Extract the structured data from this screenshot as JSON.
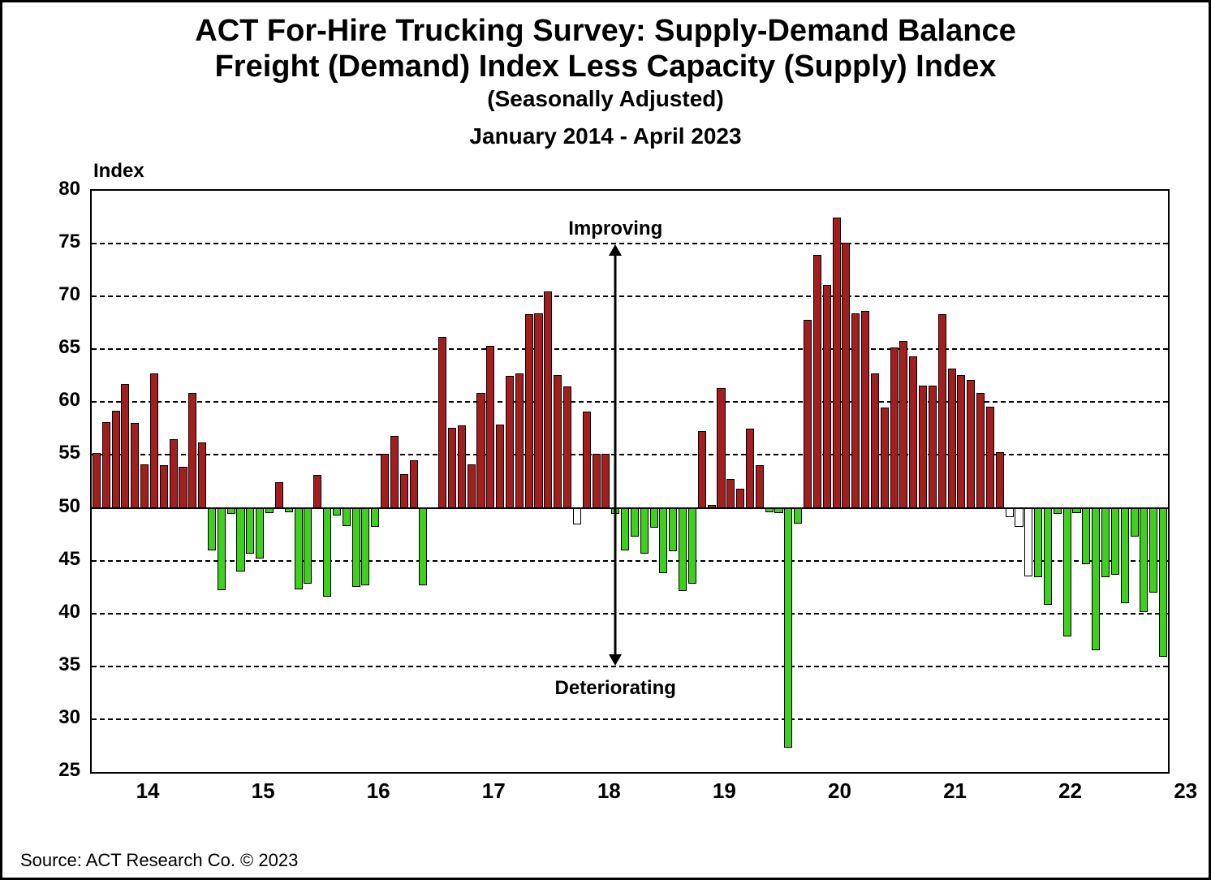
{
  "title_line1": "ACT For-Hire Trucking Survey: Supply-Demand Balance",
  "title_line2": "Freight (Demand) Index Less Capacity (Supply) Index",
  "title_sub": "(Seasonally Adjusted)",
  "title_range": "January  2014 - April  2023",
  "y_axis_label": "Index",
  "source": "Source: ACT Research Co. © 2023",
  "annotations": {
    "improving": "Improving",
    "deteriorating": "Deteriorating"
  },
  "chart": {
    "type": "bar",
    "y_min": 25,
    "y_max": 80,
    "y_tick_step": 5,
    "baseline": 50,
    "grid_color": "#000000",
    "grid_dash": true,
    "background_color": "#ffffff",
    "plot_border_color": "#000000",
    "bar_border_color": "#000000",
    "color_above": "#a31f1f",
    "color_below": "#3fcf1f",
    "color_neutral": "#ffffff",
    "bar_gap_ratio": 0.15,
    "x_year_labels": [
      "14",
      "15",
      "16",
      "17",
      "18",
      "19",
      "20",
      "21",
      "22",
      "23"
    ],
    "arrow_x_month_index": 54,
    "y_ticks": [
      25,
      30,
      35,
      40,
      45,
      50,
      55,
      60,
      65,
      70,
      75,
      80
    ],
    "values": [
      55.2,
      58.1,
      59.2,
      61.7,
      58.0,
      54.1,
      62.7,
      54.0,
      56.5,
      53.9,
      60.9,
      56.2,
      46.0,
      42.2,
      49.4,
      44.0,
      45.7,
      45.2,
      49.5,
      52.4,
      49.6,
      42.3,
      42.8,
      53.1,
      41.6,
      49.3,
      48.3,
      42.5,
      42.7,
      48.2,
      55.1,
      56.8,
      53.2,
      54.5,
      42.7,
      50.0,
      66.2,
      57.6,
      57.8,
      54.1,
      60.9,
      65.3,
      57.9,
      62.5,
      62.7,
      68.3,
      68.4,
      70.5,
      62.6,
      61.5,
      48.4,
      59.1,
      55.1,
      55.1,
      49.4,
      46.0,
      47.3,
      45.7,
      48.1,
      43.8,
      45.9,
      42.1,
      42.8,
      57.3,
      50.3,
      61.3,
      52.7,
      51.8,
      57.5,
      54.0,
      49.6,
      49.5,
      27.3,
      48.5,
      67.8,
      73.9,
      71.1,
      77.5,
      75.1,
      68.4,
      68.6,
      62.7,
      59.5,
      65.2,
      65.8,
      64.3,
      61.6,
      61.6,
      68.3,
      63.2,
      62.6,
      62.1,
      60.9,
      59.6,
      55.3,
      49.1,
      48.2,
      43.5,
      43.4,
      40.8,
      49.4,
      37.8,
      49.5,
      44.7,
      36.5,
      43.4,
      43.7,
      41.0,
      47.3,
      40.1,
      42.0,
      35.9
    ]
  },
  "typography": {
    "title_fontsize_pt": 28,
    "subtitle_fontsize_pt": 21,
    "range_fontsize_pt": 21,
    "axis_tick_fontsize_pt": 18,
    "annotation_fontsize_pt": 18,
    "source_fontsize_pt": 16,
    "font_family": "Arial"
  }
}
